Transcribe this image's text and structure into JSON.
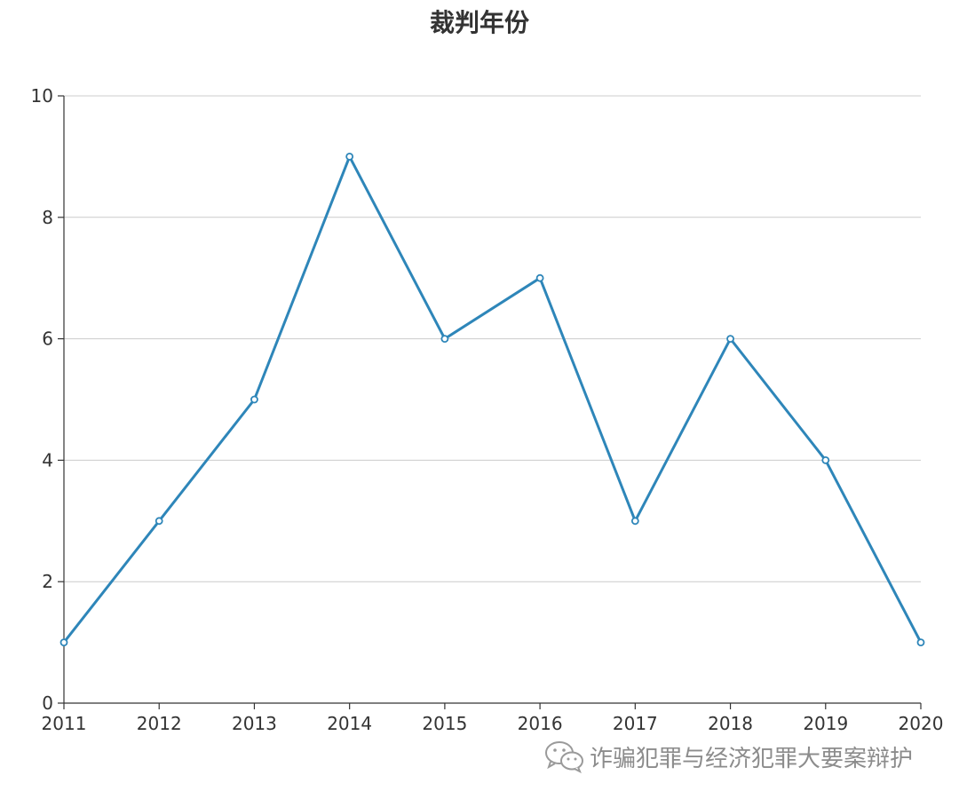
{
  "chart_data": {
    "type": "line",
    "title": "裁判年份",
    "categories": [
      "2011",
      "2012",
      "2013",
      "2014",
      "2015",
      "2016",
      "2017",
      "2018",
      "2019",
      "2020"
    ],
    "series": [
      {
        "values": [
          1,
          3,
          5,
          9,
          6,
          7,
          3,
          6,
          4,
          1
        ]
      }
    ],
    "ylim": [
      0,
      10
    ],
    "yticks": [
      0,
      2,
      4,
      6,
      8,
      10
    ],
    "grid": true,
    "line_color": "#2e86b9"
  },
  "watermark": {
    "text": "诈骗犯罪与经济犯罪大要案辩护",
    "icon": "wechat-icon"
  }
}
